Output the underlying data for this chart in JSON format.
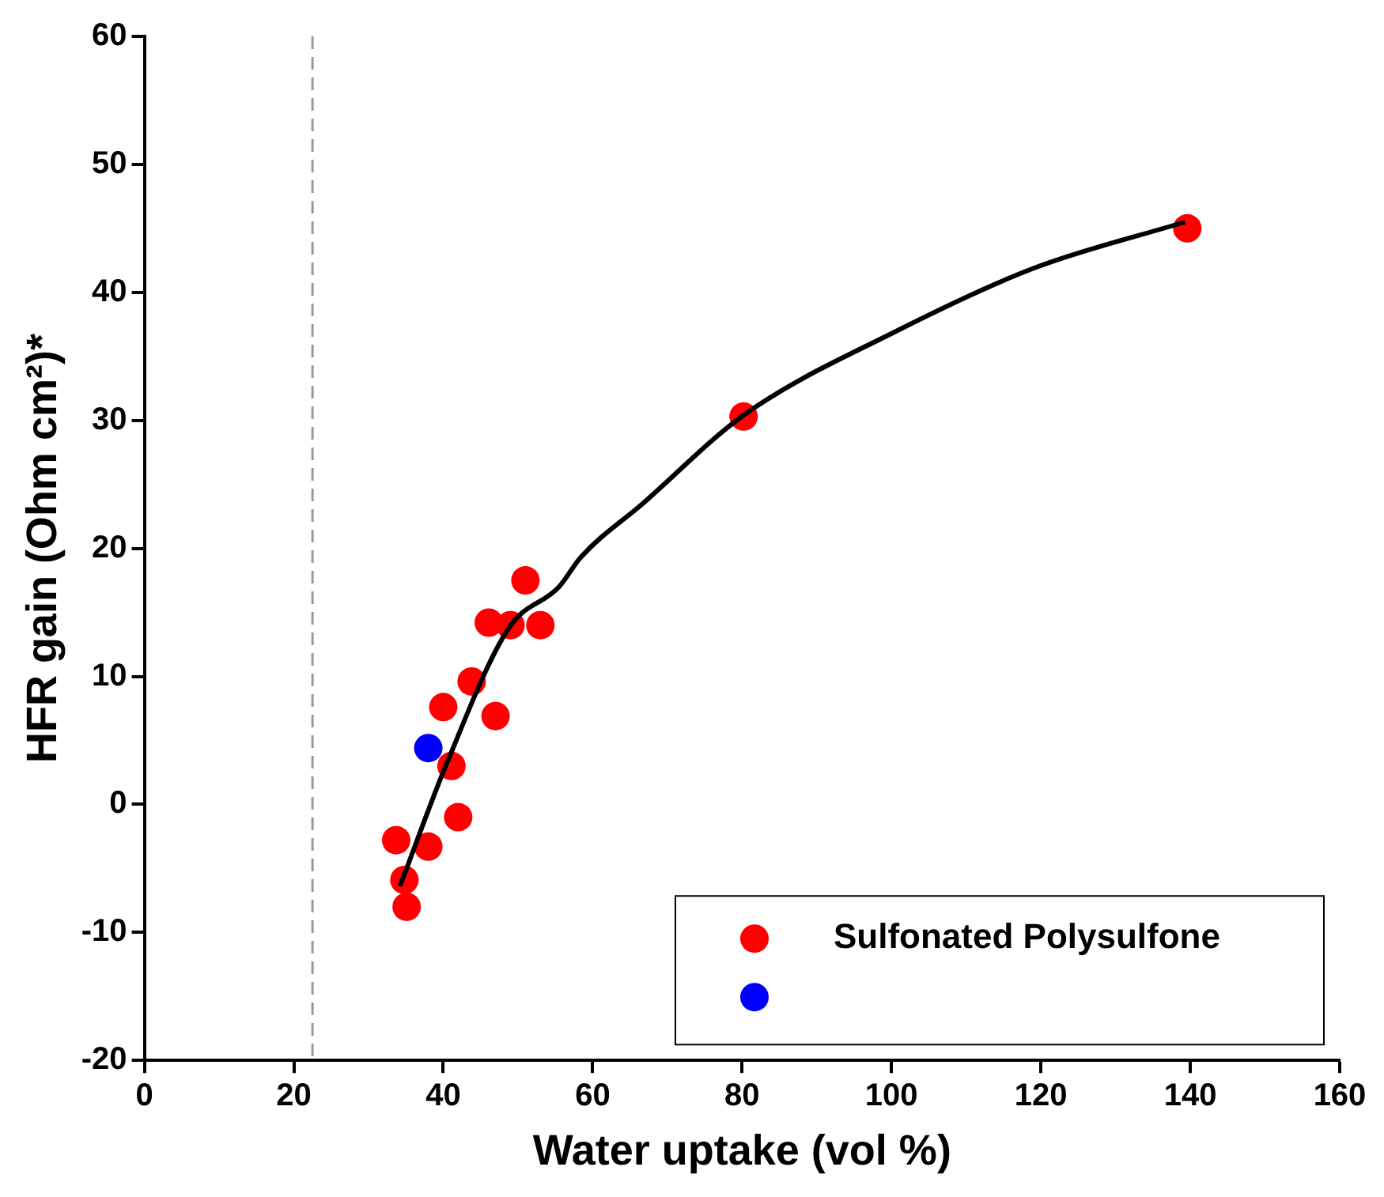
{
  "chart_data": {
    "type": "scatter",
    "xlabel": "Water uptake (vol %)",
    "ylabel": "HFR gain (Ohm cm²)*",
    "xlim": [
      0,
      160
    ],
    "xticks": [
      0,
      20,
      40,
      60,
      80,
      100,
      120,
      140,
      160
    ],
    "ylim": [
      -20,
      60
    ],
    "yticks": [
      -20,
      -10,
      0,
      10,
      20,
      30,
      40,
      50,
      60
    ],
    "grid": false,
    "legend": "bottom right",
    "marker": "circle",
    "ref_lines": [
      {
        "axis": "x",
        "value": 22.5,
        "color": "#999999",
        "line_style": "dashed"
      }
    ],
    "series": [
      {
        "name": "Sulfonated Polysulfone",
        "color": "#ff0000",
        "x": [
          33.7,
          34.8,
          35.1,
          38.0,
          42.0,
          41.1,
          40.0,
          43.8,
          47.0,
          46.1,
          49.0,
          51.0,
          53.0,
          80.2,
          139.6
        ],
        "values": [
          -2.8,
          -5.9,
          -8.0,
          -3.3,
          -1.0,
          3.0,
          7.6,
          9.6,
          6.9,
          14.2,
          14.0,
          17.5,
          14.0,
          30.3,
          45.0
        ]
      },
      {
        "color": "#0000ff",
        "x": [
          38.0
        ],
        "values": [
          4.4
        ]
      },
      {
        "type": "line",
        "color": "#000000",
        "marker": "none",
        "line_style": "solid",
        "x": [
          34.2,
          40.4,
          48.8,
          55.5,
          58.4,
          66.7,
          80.2,
          100.4,
          119.1,
          139.3
        ],
        "values": [
          -6.4,
          3.1,
          13.8,
          17.0,
          19.3,
          23.5,
          30.4,
          36.9,
          41.9,
          45.5
        ]
      }
    ]
  }
}
